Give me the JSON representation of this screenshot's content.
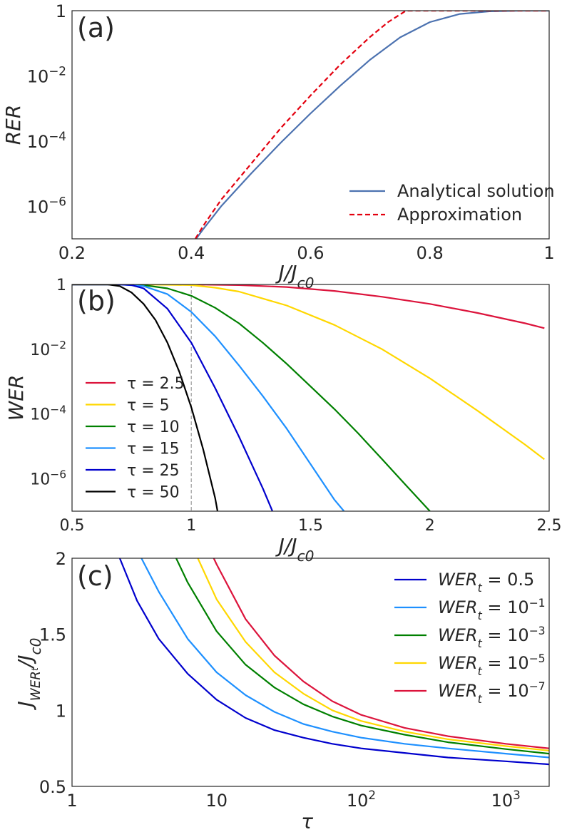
{
  "chart_data": [
    {
      "type": "line",
      "panel_label": "(a)",
      "xlabel": "J/J_c0",
      "ylabel": "RER",
      "xlim": [
        0.2,
        1.0
      ],
      "ylim_log10": [
        -7,
        0
      ],
      "y_scale": "log",
      "x_ticks": [
        0.2,
        0.4,
        0.6,
        0.8,
        1.0
      ],
      "x_tick_labels": [
        "0.2",
        "0.4",
        "0.6",
        "0.8",
        "1"
      ],
      "y_ticks_log10": [
        0,
        -2,
        -4,
        -6
      ],
      "y_tick_labels": [
        "1",
        "10",
        "10",
        "10"
      ],
      "y_tick_exponents": [
        "",
        "−2",
        "−4",
        "−6"
      ],
      "legend_position": "lower-right",
      "grid": false,
      "series": [
        {
          "name": "Analytical solution",
          "color": "#4c72b0",
          "dash": "solid",
          "x": [
            0.4,
            0.42,
            0.45,
            0.5,
            0.55,
            0.6,
            0.65,
            0.7,
            0.75,
            0.8,
            0.85,
            0.9,
            0.95,
            1.0
          ],
          "y_log10": [
            -7.2,
            -6.7,
            -6.0,
            -5.0,
            -4.05,
            -3.15,
            -2.3,
            -1.5,
            -0.82,
            -0.35,
            -0.1,
            -0.02,
            0,
            0
          ]
        },
        {
          "name": "Approximation",
          "color": "#e3000f",
          "dash": "dashed",
          "x": [
            0.4,
            0.42,
            0.45,
            0.5,
            0.55,
            0.6,
            0.65,
            0.7,
            0.73,
            0.76,
            0.8,
            0.9,
            1.0
          ],
          "y_log10": [
            -7.2,
            -6.6,
            -5.8,
            -4.7,
            -3.6,
            -2.6,
            -1.65,
            -0.8,
            -0.35,
            0,
            0,
            0,
            0
          ]
        }
      ]
    },
    {
      "type": "line",
      "panel_label": "(b)",
      "xlabel": "J/J_c0",
      "ylabel": "WER",
      "xlim": [
        0.5,
        2.5
      ],
      "ylim_log10": [
        -7,
        0
      ],
      "y_scale": "log",
      "x_ticks": [
        0.5,
        1.0,
        1.5,
        2.0,
        2.5
      ],
      "x_tick_labels": [
        "0.5",
        "1",
        "1.5",
        "2",
        "2.5"
      ],
      "y_ticks_log10": [
        0,
        -2,
        -4,
        -6
      ],
      "y_tick_labels": [
        "1",
        "10",
        "10",
        "10"
      ],
      "y_tick_exponents": [
        "",
        "−2",
        "−4",
        "−6"
      ],
      "reference_line_x": 1.0,
      "legend_position": "lower-left",
      "grid": false,
      "series": [
        {
          "name": "τ = 2.5",
          "color": "#dc143c",
          "x": [
            0.5,
            0.8,
            1.0,
            1.2,
            1.4,
            1.6,
            1.8,
            2.0,
            2.2,
            2.4,
            2.48
          ],
          "y_log10": [
            0,
            0,
            0,
            -0.02,
            -0.08,
            -0.2,
            -0.38,
            -0.6,
            -0.88,
            -1.2,
            -1.35
          ]
        },
        {
          "name": "τ = 5",
          "color": "#ffd700",
          "x": [
            0.5,
            0.8,
            1.0,
            1.1,
            1.2,
            1.4,
            1.6,
            1.8,
            2.0,
            2.2,
            2.4,
            2.48
          ],
          "y_log10": [
            0,
            0,
            -0.02,
            -0.1,
            -0.22,
            -0.65,
            -1.25,
            -2.0,
            -2.9,
            -3.9,
            -4.95,
            -5.4
          ]
        },
        {
          "name": "τ = 10",
          "color": "#008000",
          "x": [
            0.5,
            0.7,
            0.8,
            0.9,
            1.0,
            1.1,
            1.2,
            1.3,
            1.4,
            1.5,
            1.6,
            1.7,
            1.8,
            1.9,
            2.0
          ],
          "y_log10": [
            0,
            0,
            -0.02,
            -0.12,
            -0.35,
            -0.72,
            -1.2,
            -1.8,
            -2.45,
            -3.15,
            -3.85,
            -4.6,
            -5.4,
            -6.2,
            -7.0
          ]
        },
        {
          "name": "τ = 15",
          "color": "#1e90ff",
          "x": [
            0.5,
            0.7,
            0.8,
            0.9,
            1.0,
            1.1,
            1.2,
            1.3,
            1.4,
            1.5,
            1.6,
            1.64
          ],
          "y_log10": [
            0,
            0,
            -0.05,
            -0.3,
            -0.85,
            -1.6,
            -2.5,
            -3.45,
            -4.45,
            -5.55,
            -6.65,
            -7.0
          ]
        },
        {
          "name": "τ = 25",
          "color": "#0000cd",
          "x": [
            0.5,
            0.7,
            0.75,
            0.8,
            0.9,
            1.0,
            1.1,
            1.2,
            1.3,
            1.34
          ],
          "y_log10": [
            0,
            0,
            -0.02,
            -0.12,
            -0.75,
            -1.8,
            -3.2,
            -4.7,
            -6.3,
            -7.0
          ]
        },
        {
          "name": "τ = 50",
          "color": "#000000",
          "x": [
            0.5,
            0.65,
            0.7,
            0.75,
            0.8,
            0.85,
            0.9,
            0.95,
            1.0,
            1.05,
            1.1,
            1.11
          ],
          "y_log10": [
            0,
            0,
            -0.05,
            -0.25,
            -0.6,
            -1.1,
            -1.8,
            -2.7,
            -3.8,
            -5.1,
            -6.6,
            -7.0
          ]
        }
      ]
    },
    {
      "type": "line",
      "panel_label": "(c)",
      "xlabel": "τ",
      "ylabel": "J_WERt/J_c0",
      "xlim_log10": [
        0,
        3.3
      ],
      "x_scale": "log",
      "ylim": [
        0.5,
        2.0
      ],
      "x_ticks_log10": [
        0,
        1,
        2,
        3
      ],
      "x_tick_labels": [
        "1",
        "10",
        "10",
        "10"
      ],
      "x_tick_exponents": [
        "",
        "",
        "2",
        "3"
      ],
      "y_ticks": [
        0.5,
        1.0,
        1.5,
        2.0
      ],
      "y_tick_labels": [
        "0.5",
        "1",
        "1.5",
        "2"
      ],
      "legend_position": "upper-right",
      "grid": false,
      "series": [
        {
          "name": "WER_t = 0.5",
          "color": "#0000cd",
          "x_log10": [
            0.33,
            0.45,
            0.6,
            0.8,
            1.0,
            1.2,
            1.4,
            1.6,
            1.8,
            2.0,
            2.3,
            2.6,
            3.0,
            3.3
          ],
          "y": [
            2.0,
            1.72,
            1.47,
            1.24,
            1.07,
            0.95,
            0.87,
            0.82,
            0.78,
            0.75,
            0.72,
            0.69,
            0.665,
            0.645
          ]
        },
        {
          "name": "WER_t = 10^-1",
          "color": "#1e90ff",
          "x_log10": [
            0.48,
            0.6,
            0.8,
            1.0,
            1.2,
            1.4,
            1.6,
            1.8,
            2.0,
            2.3,
            2.6,
            3.0,
            3.3
          ],
          "y": [
            2.0,
            1.78,
            1.47,
            1.25,
            1.1,
            0.99,
            0.91,
            0.86,
            0.82,
            0.78,
            0.75,
            0.715,
            0.69
          ]
        },
        {
          "name": "WER_t = 10^-3",
          "color": "#008000",
          "x_log10": [
            0.72,
            0.8,
            1.0,
            1.2,
            1.4,
            1.6,
            1.8,
            2.0,
            2.3,
            2.6,
            3.0,
            3.3
          ],
          "y": [
            2.0,
            1.84,
            1.52,
            1.3,
            1.15,
            1.04,
            0.96,
            0.9,
            0.84,
            0.79,
            0.745,
            0.715
          ]
        },
        {
          "name": "WER_t = 10^-5",
          "color": "#ffd700",
          "x_log10": [
            0.87,
            1.0,
            1.2,
            1.4,
            1.6,
            1.8,
            2.0,
            2.3,
            2.6,
            3.0,
            3.3
          ],
          "y": [
            2.0,
            1.73,
            1.45,
            1.25,
            1.11,
            1.0,
            0.93,
            0.86,
            0.81,
            0.765,
            0.735
          ]
        },
        {
          "name": "WER_t = 10^-7",
          "color": "#dc143c",
          "x_log10": [
            0.98,
            1.0,
            1.2,
            1.4,
            1.6,
            1.8,
            2.0,
            2.3,
            2.6,
            3.0,
            3.3
          ],
          "y": [
            2.0,
            1.96,
            1.6,
            1.36,
            1.19,
            1.06,
            0.97,
            0.885,
            0.83,
            0.78,
            0.75
          ]
        }
      ]
    }
  ]
}
